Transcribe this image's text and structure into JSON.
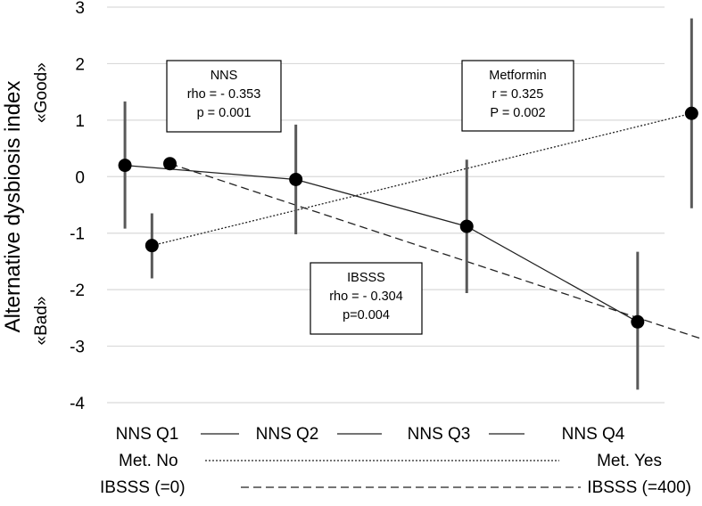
{
  "chart_data": {
    "type": "scatter",
    "ylabel": "Alternative dysbiosis index",
    "ylabel_good": "«Good»",
    "ylabel_bad": "«Bad»",
    "ylim": [
      -4,
      3
    ],
    "yticks": [
      "3",
      "2",
      "1",
      "0",
      "-1",
      "-2",
      "-3",
      "-4"
    ],
    "grid": "horizontal",
    "series": [
      {
        "key": "nns",
        "line_style": "solid",
        "points": [
          {
            "x": 0.05,
            "y": 0.2,
            "err_low": -0.92,
            "err_high": 1.33
          },
          {
            "x": 1.0,
            "y": -0.05,
            "err_low": -1.02,
            "err_high": 0.92
          },
          {
            "x": 1.95,
            "y": -0.88,
            "err_low": -2.06,
            "err_high": 0.3
          },
          {
            "x": 2.9,
            "y": -2.57,
            "err_low": -3.77,
            "err_high": -1.33
          }
        ]
      },
      {
        "key": "metformin",
        "line_style": "dotted",
        "points": [
          {
            "x": 0.2,
            "y": -1.22,
            "err_low": -1.8,
            "err_high": -0.65
          },
          {
            "x": 3.2,
            "y": 1.12,
            "err_low": -0.56,
            "err_high": 2.8
          }
        ]
      },
      {
        "key": "ibsss",
        "line_style": "dashed",
        "points": [
          {
            "x": 0.3,
            "y": 0.23
          },
          {
            "x": 3.35,
            "y": -2.97
          }
        ]
      }
    ],
    "annotations": [
      {
        "key": "nns-stats",
        "lines": [
          "NNS",
          "rho = - 0.353",
          "p = 0.001"
        ]
      },
      {
        "key": "metformin-stats",
        "lines": [
          "Metformin",
          "r = 0.325",
          "P = 0.002"
        ]
      },
      {
        "key": "ibsss-stats",
        "lines": [
          "IBSSS",
          "rho = - 0.304",
          "p=0.004"
        ]
      }
    ],
    "legend": {
      "placement": "bottom",
      "rows": [
        {
          "key": "nns",
          "labels": [
            "NNS Q1",
            "NNS Q2",
            "NNS Q3",
            "NNS Q4"
          ],
          "line_style": "solid"
        },
        {
          "key": "metformin",
          "labels": [
            "Met. No",
            "Met. Yes"
          ],
          "line_style": "dotted"
        },
        {
          "key": "ibsss",
          "labels": [
            "IBSSS (=0)",
            "IBSSS (=400)"
          ],
          "line_style": "dashed"
        }
      ]
    }
  }
}
